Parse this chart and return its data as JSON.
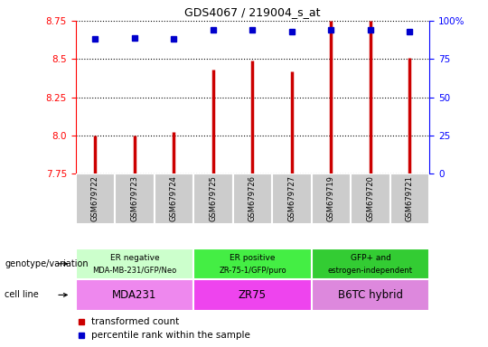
{
  "title": "GDS4067 / 219004_s_at",
  "samples": [
    "GSM679722",
    "GSM679723",
    "GSM679724",
    "GSM679725",
    "GSM679726",
    "GSM679727",
    "GSM679719",
    "GSM679720",
    "GSM679721"
  ],
  "transformed_counts": [
    8.0,
    8.0,
    8.02,
    8.43,
    8.49,
    8.42,
    8.75,
    8.75,
    8.51
  ],
  "percentile_ranks": [
    88,
    89,
    88,
    94,
    94,
    93,
    94,
    94,
    93
  ],
  "ylim_left": [
    7.75,
    8.75
  ],
  "ylim_right": [
    0,
    100
  ],
  "yticks_left": [
    7.75,
    8.0,
    8.25,
    8.5,
    8.75
  ],
  "yticks_right": [
    0,
    25,
    50,
    75,
    100
  ],
  "bar_color": "#cc0000",
  "dot_color": "#0000cc",
  "groups": [
    {
      "label_line1": "ER negative",
      "label_line2": "MDA-MB-231/GFP/Neo",
      "samples_idx": [
        0,
        1,
        2
      ],
      "cell_line": "MDA231",
      "geno_color": "#ccffcc",
      "cell_color": "#ee88ee"
    },
    {
      "label_line1": "ER positive",
      "label_line2": "ZR-75-1/GFP/puro",
      "samples_idx": [
        3,
        4,
        5
      ],
      "cell_line": "ZR75",
      "geno_color": "#44ee44",
      "cell_color": "#ee44ee"
    },
    {
      "label_line1": "GFP+ and",
      "label_line2": "estrogen-independent",
      "samples_idx": [
        6,
        7,
        8
      ],
      "cell_line": "B6TC hybrid",
      "geno_color": "#33cc33",
      "cell_color": "#dd88dd"
    }
  ],
  "legend_items": [
    {
      "label": "transformed count",
      "color": "#cc0000"
    },
    {
      "label": "percentile rank within the sample",
      "color": "#0000cc"
    }
  ],
  "xtick_bg_color": "#cccccc",
  "xtick_divider_color": "#aaaaaa",
  "grid_color": "black",
  "figure_bg": "#ffffff"
}
